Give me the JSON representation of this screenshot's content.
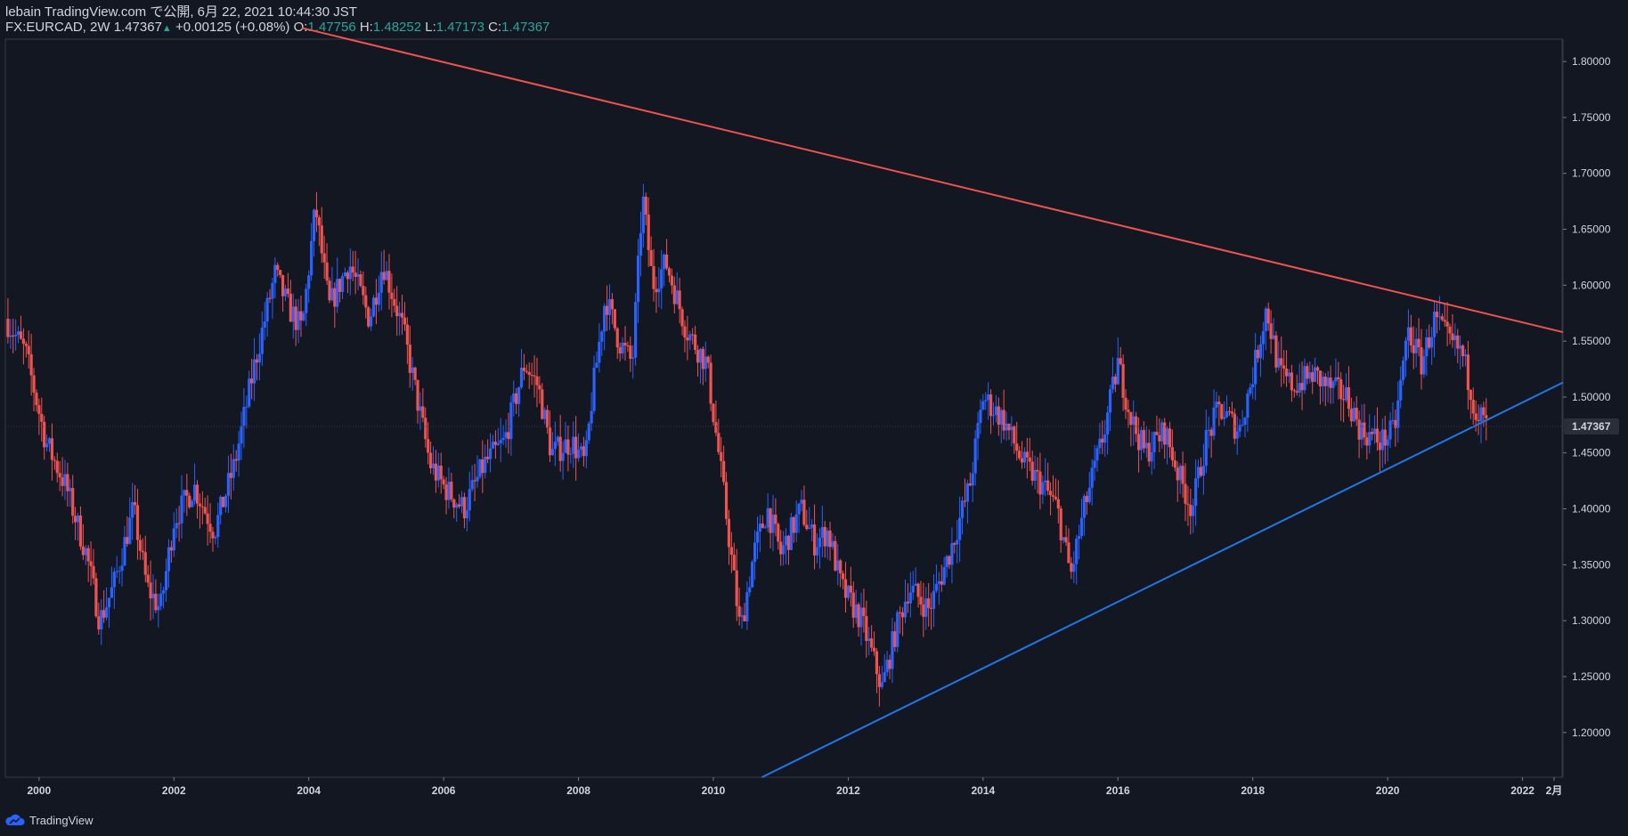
{
  "header": {
    "publisher": "lebain TradingView.com で公開, 6月 22, 2021 10:44:30 JST",
    "symbol": "FX:EURCAD, 2W",
    "last": "1.47367",
    "arrow": "▲",
    "change": "+0.00125 (+0.08%)",
    "o_label": "O:",
    "o": "1.47756",
    "h_label": "H:",
    "h": "1.48252",
    "l_label": "L:",
    "l": "1.47173",
    "c_label": "C:",
    "c": "1.47367"
  },
  "footer": {
    "brand": "TradingView",
    "icon": "tradingview-cloud-icon"
  },
  "colors": {
    "background": "#131722",
    "up": "#2962ff",
    "down": "#ef5350",
    "resistance": "#ef5350",
    "support": "#2276e8",
    "text": "#d1d4dc",
    "accent": "#26a69a"
  },
  "chart_data": {
    "type": "candlestick",
    "ylim": [
      1.16,
      1.82
    ],
    "xlim": [
      1999.5,
      2022.6
    ],
    "y_ticks": [
      "1.80000",
      "1.75000",
      "1.70000",
      "1.65000",
      "1.60000",
      "1.55000",
      "1.50000",
      "1.45000",
      "1.40000",
      "1.35000",
      "1.30000",
      "1.25000",
      "1.20000"
    ],
    "x_ticks": [
      "2000",
      "2002",
      "2004",
      "2006",
      "2008",
      "2010",
      "2012",
      "2014",
      "2016",
      "2018",
      "2020",
      "2022",
      "2月"
    ],
    "last_price_label": "1.47367",
    "price_path": [
      [
        1999.5,
        1.57
      ],
      [
        1999.8,
        1.54
      ],
      [
        2000.1,
        1.46
      ],
      [
        2000.4,
        1.42
      ],
      [
        2000.7,
        1.36
      ],
      [
        2000.9,
        1.3
      ],
      [
        2001.1,
        1.33
      ],
      [
        2001.4,
        1.4
      ],
      [
        2001.6,
        1.33
      ],
      [
        2001.8,
        1.31
      ],
      [
        2002.0,
        1.39
      ],
      [
        2002.3,
        1.42
      ],
      [
        2002.6,
        1.38
      ],
      [
        2002.9,
        1.44
      ],
      [
        2003.2,
        1.53
      ],
      [
        2003.5,
        1.61
      ],
      [
        2003.7,
        1.58
      ],
      [
        2003.9,
        1.56
      ],
      [
        2004.1,
        1.67
      ],
      [
        2004.3,
        1.58
      ],
      [
        2004.6,
        1.62
      ],
      [
        2004.9,
        1.57
      ],
      [
        2005.1,
        1.62
      ],
      [
        2005.4,
        1.56
      ],
      [
        2005.6,
        1.5
      ],
      [
        2005.8,
        1.44
      ],
      [
        2006.0,
        1.42
      ],
      [
        2006.3,
        1.4
      ],
      [
        2006.6,
        1.44
      ],
      [
        2006.9,
        1.46
      ],
      [
        2007.2,
        1.53
      ],
      [
        2007.4,
        1.51
      ],
      [
        2007.6,
        1.45
      ],
      [
        2007.9,
        1.46
      ],
      [
        2008.1,
        1.44
      ],
      [
        2008.2,
        1.5
      ],
      [
        2008.4,
        1.59
      ],
      [
        2008.6,
        1.55
      ],
      [
        2008.8,
        1.53
      ],
      [
        2008.95,
        1.68
      ],
      [
        2009.1,
        1.6
      ],
      [
        2009.3,
        1.62
      ],
      [
        2009.6,
        1.56
      ],
      [
        2009.9,
        1.53
      ],
      [
        2010.1,
        1.44
      ],
      [
        2010.4,
        1.29
      ],
      [
        2010.6,
        1.36
      ],
      [
        2010.8,
        1.4
      ],
      [
        2011.0,
        1.36
      ],
      [
        2011.3,
        1.4
      ],
      [
        2011.5,
        1.37
      ],
      [
        2011.7,
        1.38
      ],
      [
        2011.9,
        1.33
      ],
      [
        2012.2,
        1.3
      ],
      [
        2012.5,
        1.24
      ],
      [
        2012.7,
        1.29
      ],
      [
        2012.9,
        1.33
      ],
      [
        2013.2,
        1.31
      ],
      [
        2013.5,
        1.36
      ],
      [
        2013.8,
        1.42
      ],
      [
        2014.0,
        1.5
      ],
      [
        2014.3,
        1.48
      ],
      [
        2014.6,
        1.44
      ],
      [
        2014.9,
        1.42
      ],
      [
        2015.1,
        1.4
      ],
      [
        2015.3,
        1.34
      ],
      [
        2015.5,
        1.4
      ],
      [
        2015.8,
        1.47
      ],
      [
        2016.0,
        1.53
      ],
      [
        2016.2,
        1.48
      ],
      [
        2016.4,
        1.45
      ],
      [
        2016.7,
        1.47
      ],
      [
        2016.9,
        1.43
      ],
      [
        2017.1,
        1.4
      ],
      [
        2017.3,
        1.46
      ],
      [
        2017.5,
        1.49
      ],
      [
        2017.8,
        1.47
      ],
      [
        2018.0,
        1.52
      ],
      [
        2018.2,
        1.58
      ],
      [
        2018.4,
        1.52
      ],
      [
        2018.6,
        1.51
      ],
      [
        2018.9,
        1.52
      ],
      [
        2019.1,
        1.51
      ],
      [
        2019.4,
        1.5
      ],
      [
        2019.6,
        1.47
      ],
      [
        2019.9,
        1.46
      ],
      [
        2020.1,
        1.47
      ],
      [
        2020.3,
        1.56
      ],
      [
        2020.5,
        1.53
      ],
      [
        2020.7,
        1.57
      ],
      [
        2020.9,
        1.55
      ],
      [
        2021.1,
        1.54
      ],
      [
        2021.3,
        1.49
      ],
      [
        2021.47,
        1.474
      ]
    ],
    "trendlines": [
      {
        "name": "",
        "color": "#ef5350",
        "points": [
          [
            2003.9,
            1.83
          ],
          [
            2022.6,
            1.558
          ]
        ]
      },
      {
        "name": "",
        "color": "#2276e8",
        "points": [
          [
            2010.72,
            1.16
          ],
          [
            2022.6,
            1.513
          ]
        ]
      }
    ],
    "grid": false,
    "legend": "none"
  }
}
